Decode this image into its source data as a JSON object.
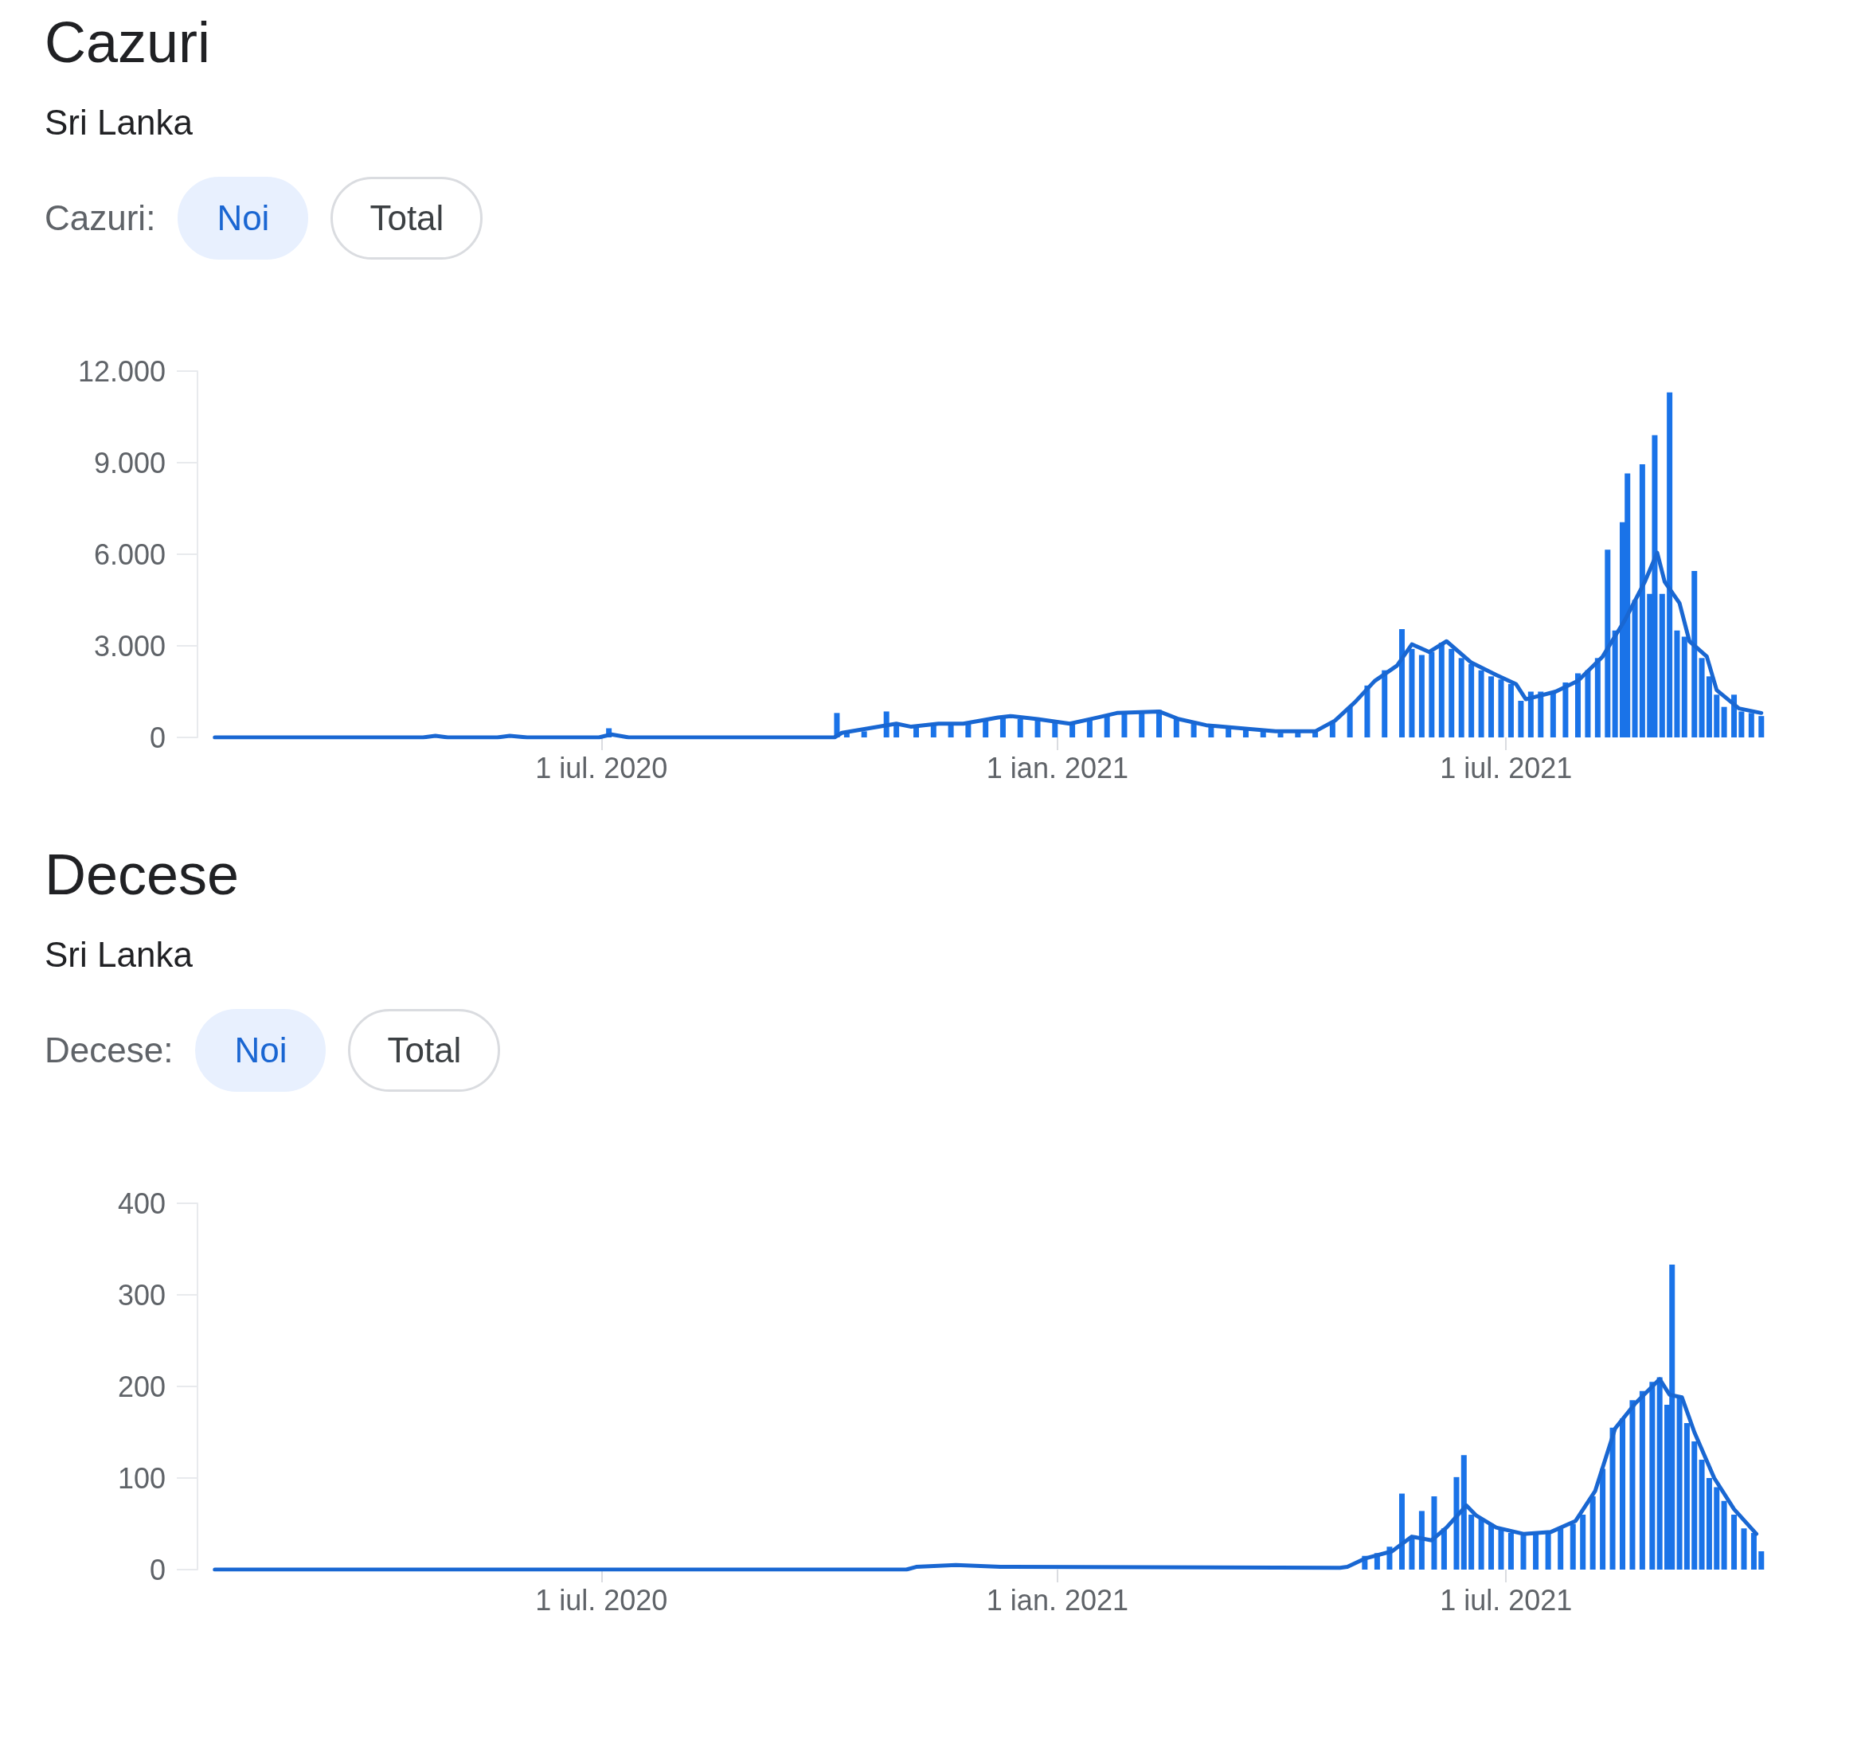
{
  "chart_data": [
    {
      "type": "bar",
      "title": "Cazuri",
      "subtitle": "Sri Lanka",
      "annotations": [
        "Cazuri:",
        "Noi",
        "Total"
      ],
      "xlim": [
        "2020-01-20",
        "2021-10-14"
      ],
      "xticks": [
        {
          "value": "2020-07-01",
          "label": "1 iul. 2020"
        },
        {
          "value": "2021-01-01",
          "label": "1 ian. 2021"
        },
        {
          "value": "2021-07-01",
          "label": "1 iul. 2021"
        }
      ],
      "ylim": [
        0,
        12000
      ],
      "yticks": [
        0,
        {
          "value": 3000,
          "label": "3.000"
        },
        {
          "value": 6000,
          "label": "6.000"
        },
        {
          "value": 9000,
          "label": "9.000"
        },
        {
          "value": 12000,
          "label": "12.000"
        }
      ],
      "grid": false,
      "series": [
        {
          "color": "#1a73e8",
          "x": [
            "2020-01-27",
            "2020-02-20",
            "2020-03-20",
            "2020-04-25",
            "2020-05-10",
            "2020-05-26",
            "2020-06-10",
            "2020-07-04",
            "2020-07-10",
            "2020-08-10",
            "2020-09-10",
            "2020-10-04",
            "2020-10-08",
            "2020-10-15",
            "2020-10-24",
            "2020-10-28",
            "2020-11-05",
            "2020-11-12",
            "2020-11-19",
            "2020-11-26",
            "2020-12-03",
            "2020-12-10",
            "2020-12-17",
            "2020-12-24",
            "2020-12-31",
            "2021-01-07",
            "2021-01-14",
            "2021-01-21",
            "2021-01-28",
            "2021-02-04",
            "2021-02-11",
            "2021-02-18",
            "2021-02-25",
            "2021-03-04",
            "2021-03-11",
            "2021-03-18",
            "2021-03-25",
            "2021-04-01",
            "2021-04-08",
            "2021-04-15",
            "2021-04-22",
            "2021-04-29",
            "2021-05-06",
            "2021-05-13",
            "2021-05-20",
            "2021-05-24",
            "2021-05-28",
            "2021-06-01",
            "2021-06-05",
            "2021-06-09",
            "2021-06-13",
            "2021-06-17",
            "2021-06-21",
            "2021-06-25",
            "2021-06-29",
            "2021-07-03",
            "2021-07-07",
            "2021-07-11",
            "2021-07-15",
            "2021-07-20",
            "2021-07-25",
            "2021-07-30",
            "2021-08-03",
            "2021-08-07",
            "2021-08-11",
            "2021-08-14",
            "2021-08-17",
            "2021-08-19",
            "2021-08-22",
            "2021-08-25",
            "2021-08-28",
            "2021-08-30",
            "2021-09-02",
            "2021-09-05",
            "2021-09-08",
            "2021-09-11",
            "2021-09-15",
            "2021-09-18",
            "2021-09-21",
            "2021-09-24",
            "2021-09-27",
            "2021-10-01",
            "2021-10-04",
            "2021-10-08",
            "2021-10-12"
          ],
          "values": [
            0,
            0,
            null,
            null,
            null,
            null,
            null,
            300,
            null,
            null,
            null,
            800,
            150,
            200,
            850,
            450,
            400,
            400,
            450,
            450,
            550,
            650,
            600,
            600,
            500,
            500,
            600,
            700,
            800,
            850,
            900,
            650,
            450,
            400,
            350,
            300,
            200,
            150,
            200,
            200,
            500,
            1000,
            1700,
            2200,
            3550,
            2900,
            2700,
            2800,
            3100,
            2900,
            2600,
            2400,
            2200,
            2000,
            1900,
            1750,
            1200,
            1500,
            1500,
            1500,
            1800,
            2100,
            2200,
            2600,
            6150,
            3500,
            7050,
            8650,
            4500,
            8950,
            4700,
            9900,
            4700,
            11300,
            3500,
            3300,
            5450,
            2600,
            2000,
            1400,
            1000,
            1400,
            850,
            800,
            700
          ]
        },
        {
          "type": "line",
          "color": "#1967d2",
          "x": [
            "2020-01-27",
            "2020-04-20",
            "2020-04-25",
            "2020-04-30",
            "2020-05-20",
            "2020-05-25",
            "2020-06-01",
            "2020-06-30",
            "2020-07-05",
            "2020-07-12",
            "2020-10-03",
            "2020-10-06",
            "2020-10-28",
            "2020-11-03",
            "2020-11-14",
            "2020-11-24",
            "2020-12-08",
            "2020-12-13",
            "2020-12-24",
            "2021-01-06",
            "2021-01-17",
            "2021-01-25",
            "2021-02-11",
            "2021-02-19",
            "2021-03-02",
            "2021-03-16",
            "2021-03-30",
            "2021-04-15",
            "2021-04-23",
            "2021-05-01",
            "2021-05-09",
            "2021-05-18",
            "2021-05-24",
            "2021-05-31",
            "2021-06-07",
            "2021-06-17",
            "2021-06-27",
            "2021-07-05",
            "2021-07-09",
            "2021-07-21",
            "2021-07-30",
            "2021-08-09",
            "2021-08-18",
            "2021-08-26",
            "2021-08-31",
            "2021-09-03",
            "2021-09-09",
            "2021-09-13",
            "2021-09-20",
            "2021-09-24",
            "2021-10-03",
            "2021-10-12"
          ],
          "values": [
            0,
            0,
            50,
            0,
            0,
            50,
            0,
            0,
            100,
            0,
            0,
            150,
            450,
            350,
            450,
            450,
            650,
            700,
            600,
            450,
            650,
            800,
            850,
            600,
            400,
            300,
            200,
            200,
            550,
            1150,
            1850,
            2350,
            3050,
            2800,
            3150,
            2450,
            2050,
            1750,
            1250,
            1500,
            1850,
            2650,
            3850,
            5100,
            6050,
            5100,
            4400,
            3150,
            2650,
            1550,
            950,
            800
          ]
        }
      ]
    },
    {
      "type": "bar",
      "title": "Decese",
      "subtitle": "Sri Lanka",
      "annotations": [
        "Decese:",
        "Noi",
        "Total"
      ],
      "xlim": [
        "2020-01-20",
        "2021-10-14"
      ],
      "xticks": [
        {
          "value": "2020-07-01",
          "label": "1 iul. 2020"
        },
        {
          "value": "2021-01-01",
          "label": "1 ian. 2021"
        },
        {
          "value": "2021-07-01",
          "label": "1 iul. 2021"
        }
      ],
      "ylim": [
        0,
        400
      ],
      "yticks": [
        0,
        100,
        200,
        300,
        400
      ],
      "grid": false,
      "series": [
        {
          "color": "#1a73e8",
          "x": [
            "2020-01-27",
            "2020-04-01",
            "2020-07-01",
            "2020-10-01",
            "2020-11-05",
            "2020-11-19",
            "2020-12-03",
            "2020-12-17",
            "2021-01-07",
            "2021-01-28",
            "2021-02-11",
            "2021-02-25",
            "2021-03-10",
            "2021-03-24",
            "2021-04-07",
            "2021-04-21",
            "2021-04-28",
            "2021-05-05",
            "2021-05-10",
            "2021-05-15",
            "2021-05-20",
            "2021-05-24",
            "2021-05-28",
            "2021-06-02",
            "2021-06-06",
            "2021-06-11",
            "2021-06-14",
            "2021-06-17",
            "2021-06-21",
            "2021-06-25",
            "2021-06-29",
            "2021-07-03",
            "2021-07-08",
            "2021-07-13",
            "2021-07-18",
            "2021-07-23",
            "2021-07-28",
            "2021-08-01",
            "2021-08-05",
            "2021-08-09",
            "2021-08-13",
            "2021-08-17",
            "2021-08-21",
            "2021-08-25",
            "2021-08-29",
            "2021-09-01",
            "2021-09-04",
            "2021-09-06",
            "2021-09-09",
            "2021-09-12",
            "2021-09-15",
            "2021-09-18",
            "2021-09-21",
            "2021-09-24",
            "2021-09-27",
            "2021-10-01",
            "2021-10-05",
            "2021-10-09",
            "2021-10-12"
          ],
          "values": [
            0,
            0,
            0,
            0,
            null,
            null,
            null,
            null,
            null,
            null,
            null,
            null,
            null,
            null,
            null,
            null,
            null,
            15,
            18,
            25,
            83,
            35,
            64,
            80,
            45,
            101,
            125,
            60,
            55,
            50,
            45,
            40,
            38,
            40,
            42,
            45,
            50,
            60,
            80,
            110,
            155,
            165,
            185,
            195,
            205,
            210,
            180,
            333,
            190,
            160,
            140,
            120,
            100,
            90,
            75,
            60,
            45,
            40,
            20
          ]
        },
        {
          "type": "line",
          "color": "#1967d2",
          "x": [
            "2020-01-27",
            "2020-11-01",
            "2020-11-05",
            "2020-11-21",
            "2020-12-09",
            "2021-04-25",
            "2021-04-28",
            "2021-05-05",
            "2021-05-16",
            "2021-05-24",
            "2021-06-01",
            "2021-06-07",
            "2021-06-15",
            "2021-06-19",
            "2021-06-27",
            "2021-07-08",
            "2021-07-19",
            "2021-07-29",
            "2021-08-06",
            "2021-08-14",
            "2021-08-22",
            "2021-09-01",
            "2021-09-05",
            "2021-09-10",
            "2021-09-15",
            "2021-09-23",
            "2021-10-01",
            "2021-10-10"
          ],
          "values": [
            0,
            0,
            3,
            5,
            3,
            2,
            3,
            12,
            20,
            36,
            32,
            46,
            70,
            59,
            46,
            39,
            41,
            53,
            86,
            154,
            181,
            208,
            191,
            188,
            150,
            100,
            66,
            39
          ]
        }
      ]
    }
  ]
}
